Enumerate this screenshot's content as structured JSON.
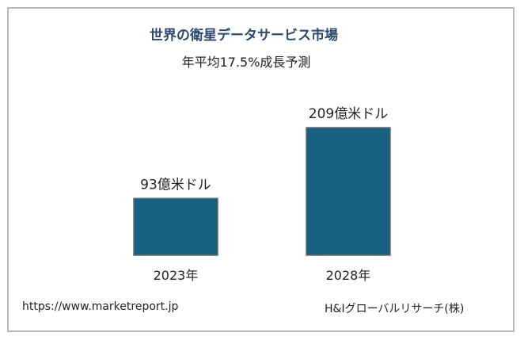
{
  "chart_data": {
    "type": "bar",
    "title": "世界の衛星データサービス市場",
    "subtitle": "年平均17.5%成長予測",
    "categories": [
      "2023年",
      "2028年"
    ],
    "values": [
      93,
      209
    ],
    "data_labels": [
      "93億米ドル",
      "209億米ドル"
    ],
    "unit": "億米ドル",
    "bar_color": "#17607f",
    "grid": false,
    "legend": false
  },
  "footer": {
    "source_url": "https://www.marketreport.jp",
    "credit": "H&Iグローバルリサーチ(株)"
  }
}
